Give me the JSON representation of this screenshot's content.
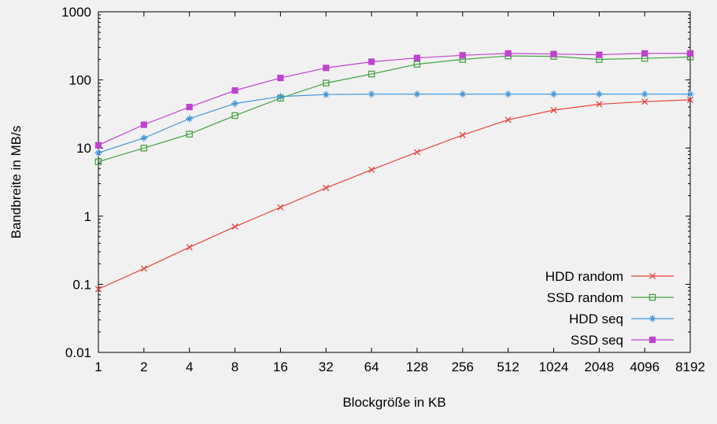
{
  "page": {
    "background": "#f1f1f1"
  },
  "chart_data": {
    "type": "line",
    "title": "",
    "xlabel": "Blockgröße in KB",
    "ylabel": "Bandbreite in MB/s",
    "x_scale": "log2",
    "y_scale": "log10",
    "xlim": [
      1,
      8192
    ],
    "ylim": [
      0.01,
      1000
    ],
    "grid": false,
    "legend_position": "bottom-right-inside",
    "x_tick_labels": [
      "1",
      "2",
      "4",
      "8",
      "16",
      "32",
      "64",
      "128",
      "256",
      "512",
      "1024",
      "2048",
      "4096",
      "8192"
    ],
    "y_tick_labels": [
      "0.01",
      "0.1",
      "1",
      "10",
      "100",
      "1000"
    ],
    "y_ticks": [
      0.01,
      0.1,
      1,
      10,
      100,
      1000
    ],
    "x": [
      1,
      2,
      4,
      8,
      16,
      32,
      64,
      128,
      256,
      512,
      1024,
      2048,
      4096,
      8192
    ],
    "series": [
      {
        "name": "HDD random",
        "color": "#e6443c",
        "marker": "cross",
        "values": [
          0.085,
          0.17,
          0.35,
          0.7,
          1.35,
          2.6,
          4.8,
          8.7,
          15.5,
          26,
          36,
          44,
          48,
          51
        ]
      },
      {
        "name": "SSD random",
        "color": "#45a345",
        "marker": "open-square",
        "values": [
          6.3,
          10,
          16,
          30,
          54,
          90,
          122,
          170,
          200,
          225,
          222,
          200,
          207,
          217
        ]
      },
      {
        "name": "HDD seq",
        "color": "#4496d8",
        "marker": "asterisk",
        "values": [
          8.5,
          14,
          27,
          45,
          57,
          61,
          62,
          62,
          62,
          62,
          62,
          62,
          62,
          62
        ]
      },
      {
        "name": "SSD seq",
        "color": "#bf42cf",
        "marker": "filled-square",
        "values": [
          11,
          22,
          40,
          70,
          107,
          150,
          185,
          210,
          230,
          245,
          240,
          234,
          245,
          245
        ]
      }
    ]
  }
}
